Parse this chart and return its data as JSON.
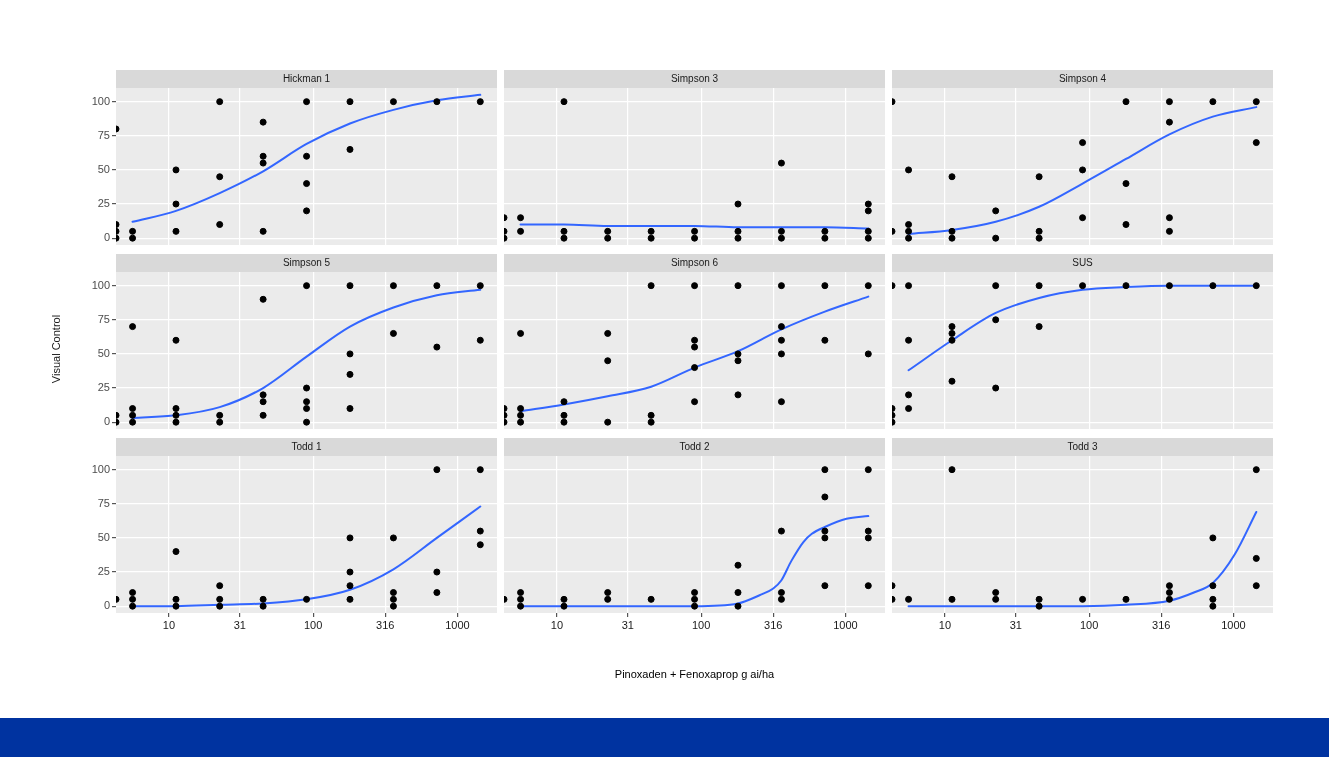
{
  "chart_data": [
    {
      "type": "scatter",
      "title": "Hickman 1",
      "log": "x",
      "grid": true,
      "tick_labels": "y",
      "xlim": [
        4.3,
        1880
      ],
      "ylim": [
        -5,
        110
      ],
      "xticks": [
        10,
        31,
        100,
        316,
        1000
      ],
      "yticks": [
        0,
        25,
        50,
        75,
        100
      ],
      "series": [
        {
          "type": "scatter",
          "marker": "circle",
          "color": "#000000",
          "x": [
            4.3,
            4.3,
            4.3,
            4.3,
            5.6,
            5.6,
            11.2,
            11.2,
            11.2,
            22.5,
            22.5,
            22.5,
            45,
            45,
            45,
            45,
            90,
            90,
            90,
            90,
            180,
            180,
            360,
            720,
            1440
          ],
          "values": [
            80,
            10,
            5,
            0,
            5,
            0,
            50,
            25,
            5,
            100,
            45,
            10,
            85,
            60,
            55,
            5,
            100,
            60,
            40,
            20,
            100,
            65,
            100,
            100,
            100
          ]
        },
        {
          "type": "line",
          "marker": "none",
          "color": "#3366ff",
          "x": [
            5.6,
            11.2,
            22.5,
            45,
            90,
            180,
            360,
            720,
            1440
          ],
          "values": [
            12,
            20,
            33,
            49,
            69,
            84,
            94,
            101,
            105
          ]
        }
      ]
    },
    {
      "type": "scatter",
      "title": "Simpson 3",
      "log": "x",
      "grid": true,
      "tick_labels": false,
      "xlim": [
        4.3,
        1880
      ],
      "ylim": [
        -5,
        110
      ],
      "xticks": [
        10,
        31,
        100,
        316,
        1000
      ],
      "yticks": [
        0,
        25,
        50,
        75,
        100
      ],
      "series": [
        {
          "type": "scatter",
          "marker": "circle",
          "color": "#000000",
          "x": [
            4.3,
            4.3,
            4.3,
            5.6,
            5.6,
            11.2,
            11.2,
            11.2,
            22.5,
            22.5,
            45,
            45,
            90,
            90,
            180,
            180,
            180,
            360,
            360,
            360,
            720,
            720,
            1440,
            1440,
            1440,
            1440
          ],
          "values": [
            15,
            5,
            0,
            15,
            5,
            100,
            5,
            0,
            5,
            0,
            5,
            0,
            5,
            0,
            25,
            5,
            0,
            55,
            5,
            0,
            5,
            0,
            25,
            20,
            5,
            0
          ]
        },
        {
          "type": "line",
          "marker": "none",
          "color": "#3366ff",
          "x": [
            5.6,
            11.2,
            22.5,
            45,
            90,
            180,
            360,
            720,
            1440
          ],
          "values": [
            10,
            10,
            9,
            9,
            9,
            8,
            8,
            8,
            7
          ]
        }
      ]
    },
    {
      "type": "scatter",
      "title": "Simpson 4",
      "log": "x",
      "grid": true,
      "tick_labels": false,
      "xlim": [
        4.3,
        1880
      ],
      "ylim": [
        -5,
        110
      ],
      "xticks": [
        10,
        31,
        100,
        316,
        1000
      ],
      "yticks": [
        0,
        25,
        50,
        75,
        100
      ],
      "series": [
        {
          "type": "scatter",
          "marker": "circle",
          "color": "#000000",
          "x": [
            4.3,
            4.3,
            5.6,
            5.6,
            5.6,
            5.6,
            11.2,
            11.2,
            11.2,
            22.5,
            22.5,
            45,
            45,
            45,
            90,
            90,
            90,
            180,
            180,
            180,
            360,
            360,
            360,
            360,
            720,
            1440,
            1440
          ],
          "values": [
            100,
            5,
            50,
            10,
            5,
            0,
            45,
            5,
            0,
            20,
            0,
            45,
            5,
            0,
            70,
            50,
            15,
            100,
            40,
            10,
            100,
            85,
            15,
            5,
            100,
            100,
            70
          ]
        },
        {
          "type": "line",
          "marker": "none",
          "color": "#3366ff",
          "x": [
            5.6,
            11.2,
            22.5,
            45,
            90,
            180,
            360,
            720,
            1440
          ],
          "values": [
            3,
            6,
            12,
            23,
            40,
            58,
            76,
            89,
            96
          ]
        }
      ]
    },
    {
      "type": "scatter",
      "title": "Simpson 5",
      "ylabel": "Visual Control",
      "log": "x",
      "grid": true,
      "tick_labels": "y",
      "xlim": [
        4.3,
        1880
      ],
      "ylim": [
        -5,
        110
      ],
      "xticks": [
        10,
        31,
        100,
        316,
        1000
      ],
      "yticks": [
        0,
        25,
        50,
        75,
        100
      ],
      "series": [
        {
          "type": "scatter",
          "marker": "circle",
          "color": "#000000",
          "x": [
            4.3,
            4.3,
            5.6,
            5.6,
            5.6,
            5.6,
            11.2,
            11.2,
            11.2,
            11.2,
            22.5,
            22.5,
            45,
            45,
            45,
            45,
            90,
            90,
            90,
            90,
            90,
            180,
            180,
            180,
            180,
            360,
            360,
            720,
            720,
            1440,
            1440
          ],
          "values": [
            5,
            0,
            70,
            10,
            5,
            0,
            60,
            10,
            5,
            0,
            5,
            0,
            90,
            20,
            15,
            5,
            100,
            25,
            15,
            10,
            0,
            100,
            50,
            35,
            10,
            100,
            65,
            100,
            55,
            100,
            60
          ]
        },
        {
          "type": "line",
          "marker": "none",
          "color": "#3366ff",
          "x": [
            5.6,
            11.2,
            22.5,
            45,
            90,
            180,
            360,
            720,
            1440
          ],
          "values": [
            3,
            5,
            11,
            25,
            48,
            70,
            84,
            93,
            97
          ]
        }
      ]
    },
    {
      "type": "scatter",
      "title": "Simpson 6",
      "log": "x",
      "grid": true,
      "tick_labels": false,
      "xlim": [
        4.3,
        1880
      ],
      "ylim": [
        -5,
        110
      ],
      "xticks": [
        10,
        31,
        100,
        316,
        1000
      ],
      "yticks": [
        0,
        25,
        50,
        75,
        100
      ],
      "series": [
        {
          "type": "scatter",
          "marker": "circle",
          "color": "#000000",
          "x": [
            4.3,
            4.3,
            4.3,
            5.6,
            5.6,
            5.6,
            5.6,
            11.2,
            11.2,
            11.2,
            22.5,
            22.5,
            22.5,
            45,
            45,
            45,
            90,
            90,
            90,
            90,
            90,
            180,
            180,
            180,
            180,
            360,
            360,
            360,
            360,
            360,
            720,
            720,
            1440,
            1440
          ],
          "values": [
            10,
            5,
            0,
            65,
            10,
            5,
            0,
            15,
            5,
            0,
            65,
            45,
            0,
            100,
            5,
            0,
            100,
            60,
            55,
            40,
            15,
            100,
            50,
            45,
            20,
            100,
            70,
            60,
            50,
            15,
            100,
            60,
            100,
            50
          ]
        },
        {
          "type": "line",
          "marker": "none",
          "color": "#3366ff",
          "x": [
            5.6,
            11.2,
            22.5,
            45,
            90,
            180,
            360,
            720,
            1440
          ],
          "values": [
            8,
            13,
            19,
            26,
            40,
            52,
            68,
            81,
            92
          ]
        }
      ]
    },
    {
      "type": "scatter",
      "title": "SUS",
      "log": "x",
      "grid": true,
      "tick_labels": false,
      "xlim": [
        4.3,
        1880
      ],
      "ylim": [
        -5,
        110
      ],
      "xticks": [
        10,
        31,
        100,
        316,
        1000
      ],
      "yticks": [
        0,
        25,
        50,
        75,
        100
      ],
      "series": [
        {
          "type": "scatter",
          "marker": "circle",
          "color": "#000000",
          "x": [
            4.3,
            4.3,
            4.3,
            4.3,
            5.6,
            5.6,
            5.6,
            5.6,
            11.2,
            11.2,
            11.2,
            11.2,
            22.5,
            22.5,
            22.5,
            45,
            45,
            90,
            180,
            360,
            720,
            1440
          ],
          "values": [
            100,
            10,
            5,
            0,
            100,
            60,
            20,
            10,
            70,
            65,
            60,
            30,
            100,
            75,
            25,
            100,
            70,
            100,
            100,
            100,
            100,
            100
          ]
        },
        {
          "type": "line",
          "marker": "none",
          "color": "#3366ff",
          "x": [
            5.6,
            11.2,
            22.5,
            45,
            90,
            180,
            360,
            720,
            1440
          ],
          "values": [
            38,
            60,
            80,
            91,
            97,
            99,
            100,
            100,
            100
          ]
        }
      ]
    },
    {
      "type": "scatter",
      "title": "Todd 1",
      "log": "x",
      "grid": true,
      "xlim": [
        4.3,
        1880
      ],
      "ylim": [
        -5,
        110
      ],
      "xticks": [
        10,
        31,
        100,
        316,
        1000
      ],
      "yticks": [
        0,
        25,
        50,
        75,
        100
      ],
      "series": [
        {
          "type": "scatter",
          "marker": "circle",
          "color": "#000000",
          "x": [
            4.3,
            5.6,
            5.6,
            5.6,
            11.2,
            11.2,
            11.2,
            22.5,
            22.5,
            22.5,
            45,
            45,
            90,
            180,
            180,
            180,
            180,
            360,
            360,
            360,
            360,
            720,
            720,
            720,
            1440,
            1440,
            1440
          ],
          "values": [
            5,
            10,
            5,
            0,
            40,
            5,
            0,
            15,
            5,
            0,
            5,
            0,
            5,
            50,
            25,
            15,
            5,
            50,
            10,
            5,
            0,
            100,
            25,
            10,
            100,
            55,
            45
          ]
        },
        {
          "type": "line",
          "marker": "none",
          "color": "#3366ff",
          "x": [
            5.6,
            11.2,
            22.5,
            45,
            90,
            180,
            360,
            720,
            1440
          ],
          "values": [
            0,
            0,
            1,
            2,
            5,
            12,
            27,
            50,
            73
          ]
        }
      ]
    },
    {
      "type": "scatter",
      "title": "Todd 2",
      "xlabel": "Pinoxaden + Fenoxaprop g ai/ha",
      "log": "x",
      "grid": true,
      "tick_labels": "x",
      "xlim": [
        4.3,
        1880
      ],
      "ylim": [
        -5,
        110
      ],
      "xticks": [
        10,
        31,
        100,
        316,
        1000
      ],
      "yticks": [
        0,
        25,
        50,
        75,
        100
      ],
      "series": [
        {
          "type": "scatter",
          "marker": "circle",
          "color": "#000000",
          "x": [
            4.3,
            5.6,
            5.6,
            5.6,
            11.2,
            11.2,
            22.5,
            22.5,
            45,
            90,
            90,
            90,
            180,
            180,
            180,
            360,
            360,
            360,
            720,
            720,
            720,
            720,
            720,
            1440,
            1440,
            1440,
            1440
          ],
          "values": [
            5,
            10,
            5,
            0,
            5,
            0,
            10,
            5,
            5,
            10,
            5,
            0,
            30,
            10,
            0,
            55,
            10,
            5,
            100,
            80,
            55,
            50,
            15,
            100,
            55,
            50,
            15
          ]
        },
        {
          "type": "line",
          "marker": "none",
          "color": "#3366ff",
          "x": [
            5.6,
            11.2,
            22.5,
            45,
            90,
            180,
            254,
            316,
            360,
            421,
            511,
            585,
            720,
            1017,
            1440
          ],
          "values": [
            0,
            0,
            0,
            0,
            0,
            2,
            8,
            13,
            19,
            33,
            47,
            53,
            58,
            64,
            66
          ]
        }
      ]
    },
    {
      "type": "scatter",
      "title": "Todd 3",
      "log": "x",
      "grid": true,
      "tick_labels": "x",
      "xlim": [
        4.3,
        1880
      ],
      "ylim": [
        -5,
        110
      ],
      "xticks": [
        10,
        31,
        100,
        316,
        1000
      ],
      "yticks": [
        0,
        25,
        50,
        75,
        100
      ],
      "series": [
        {
          "type": "scatter",
          "marker": "circle",
          "color": "#000000",
          "x": [
            4.3,
            4.3,
            5.6,
            11.2,
            11.2,
            22.5,
            22.5,
            45,
            45,
            90,
            180,
            360,
            360,
            360,
            720,
            720,
            720,
            720,
            1440,
            1440,
            1440
          ],
          "values": [
            15,
            5,
            5,
            100,
            5,
            10,
            5,
            5,
            0,
            5,
            5,
            15,
            10,
            5,
            50,
            15,
            5,
            0,
            100,
            35,
            15
          ]
        },
        {
          "type": "line",
          "marker": "none",
          "color": "#3366ff",
          "x": [
            5.6,
            11.2,
            22.5,
            45,
            90,
            180,
            360,
            532,
            720,
            1022,
            1440
          ],
          "values": [
            0,
            0,
            0,
            0,
            0,
            1,
            4,
            10,
            17,
            38,
            69
          ]
        }
      ]
    }
  ]
}
